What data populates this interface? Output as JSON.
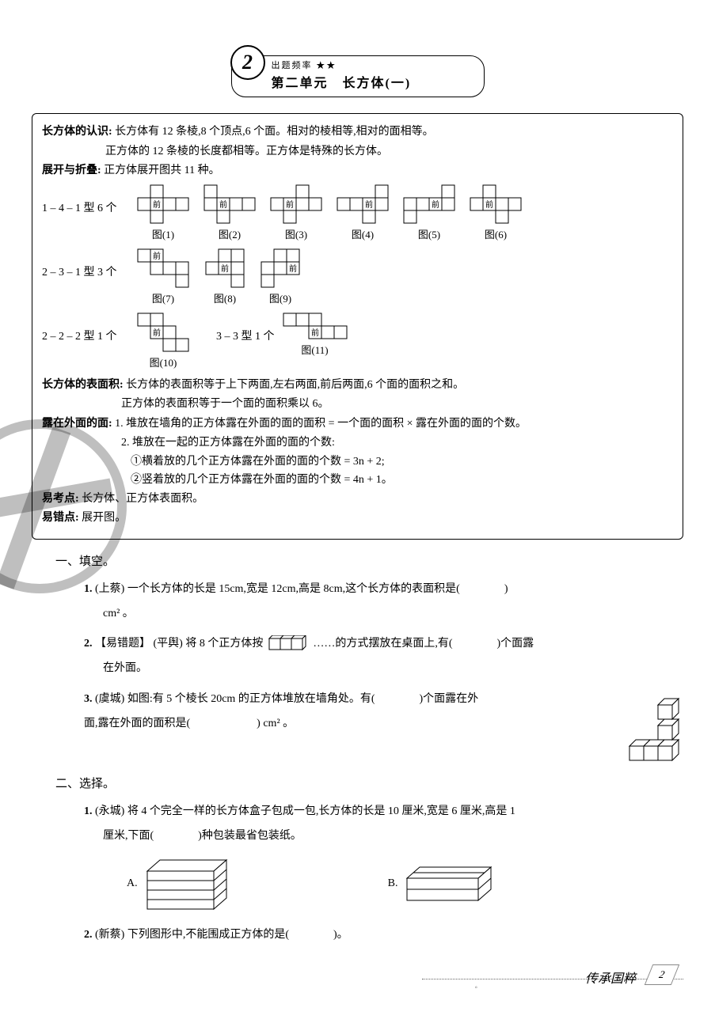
{
  "header": {
    "badge": "2",
    "freq_label": "出题频率 ★★",
    "title": "第二单元　长方体(一)"
  },
  "box": {
    "recognize": {
      "label": "长方体的认识:",
      "line1": "长方体有 12 条棱,8 个顶点,6 个面。相对的棱相等,相对的面相等。",
      "line2": "正方体的 12 条棱的长度都相等。正方体是特殊的长方体。"
    },
    "unfold": {
      "label": "展开与折叠:",
      "text": "正方体展开图共 11 种。",
      "row1_label": "1 – 4 – 1 型 6 个",
      "row2_label": "2 – 3 – 1 型 3 个",
      "row3a_label": "2 – 2 – 2 型 1 个",
      "row3b_label": "3 – 3 型 1 个",
      "front": "前",
      "caps": [
        "图(1)",
        "图(2)",
        "图(3)",
        "图(4)",
        "图(5)",
        "图(6)",
        "图(7)",
        "图(8)",
        "图(9)",
        "图(10)",
        "图(11)"
      ]
    },
    "area": {
      "label": "长方体的表面积:",
      "line1": "长方体的表面积等于上下两面,左右两面,前后两面,6 个面的面积之和。",
      "line2": "正方体的表面积等于一个面的面积乘以 6。"
    },
    "exposed": {
      "label": "露在外面的面:",
      "l1": "1. 堆放在墙角的正方体露在外面的面的面积 = 一个面的面积 × 露在外面的面的个数。",
      "l2": "2. 堆放在一起的正方体露在外面的面的个数:",
      "l3": "①横着放的几个正方体露在外面的面的个数 = 3n + 2;",
      "l4": "②竖着放的几个正方体露在外面的面的个数 = 4n + 1。"
    },
    "exam": {
      "label": "易考点:",
      "text": "长方体、正方体表面积。"
    },
    "err": {
      "label": "易错点:",
      "text": "展开图。"
    }
  },
  "sec1": {
    "heading": "一、填空。",
    "q1": {
      "no": "1.",
      "src": "(上蔡)",
      "text_a": "一个长方体的长是 15cm,宽是 12cm,高是 8cm,这个长方体的表面积是(",
      "text_b": ")",
      "tail": "cm² 。"
    },
    "q2": {
      "no": "2.",
      "tag": "【易错题】",
      "src": "(平舆)",
      "a": "将 8 个正方体按",
      "b": "……的方式摆放在桌面上,有(",
      "c": ")个面露",
      "d": "在外面。"
    },
    "q3": {
      "no": "3.",
      "src": "(虞城)",
      "a": "如图:有 5 个棱长 20cm 的正方体堆放在墙角处。有(",
      "b": ")个面露在外",
      "c": "面,露在外面的面积是(",
      "d": ") cm² 。"
    }
  },
  "sec2": {
    "heading": "二、选择。",
    "q1": {
      "no": "1.",
      "src": "(永城)",
      "a": "将 4 个完全一样的长方体盒子包成一包,长方体的长是 10 厘米,宽是 6 厘米,高是 1",
      "b": "厘米,下面(",
      "c": ")种包装最省包装纸。",
      "optA": "A.",
      "optB": "B."
    },
    "q2": {
      "no": "2.",
      "src": "(新蔡)",
      "a": "下列图形中,不能围成正方体的是(",
      "b": ")。"
    }
  },
  "footer": {
    "motto": "传承国粹",
    "page": "2"
  },
  "svg": {
    "cell": 16,
    "stroke": "#000",
    "fill": "#fff",
    "front_font": 10
  }
}
